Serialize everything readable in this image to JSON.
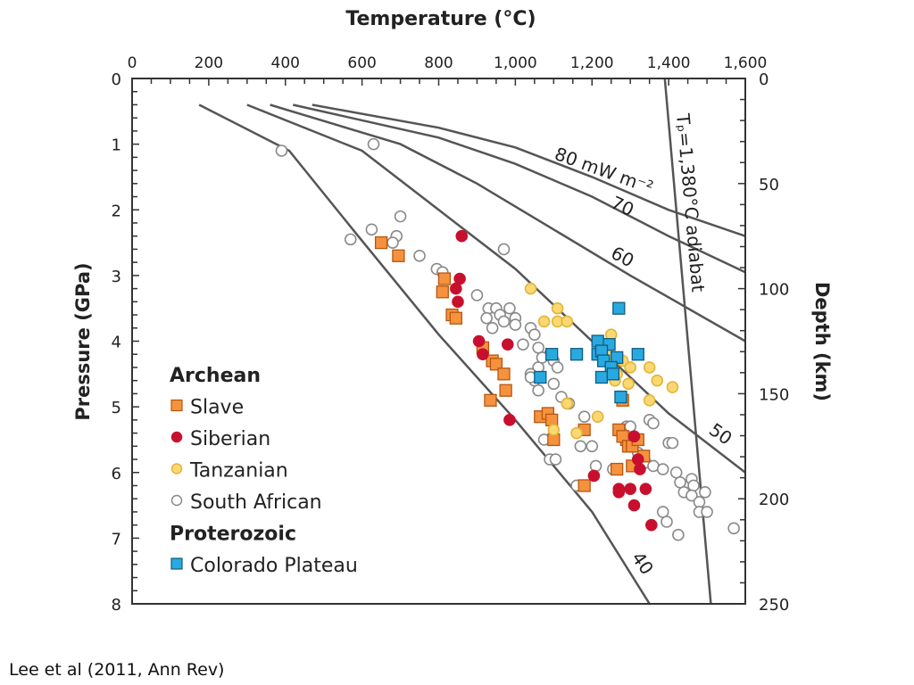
{
  "caption": "Lee et al (2011, Ann Rev)",
  "chart_data": {
    "type": "scatter",
    "title": "",
    "xlabel": "Temperature (°C)",
    "ylabel": "Pressure (GPa)",
    "y2label": "Depth (km)",
    "xlim": [
      0,
      1600
    ],
    "ylim": [
      0,
      8
    ],
    "y2lim": [
      0,
      250
    ],
    "x_ticks": [
      "0",
      "200",
      "400",
      "600",
      "800",
      "1,000",
      "1,200",
      "1,400",
      "1,600"
    ],
    "y_ticks": [
      "0",
      "1",
      "2",
      "3",
      "4",
      "5",
      "6",
      "7",
      "8"
    ],
    "y2_ticks": [
      "0",
      "50",
      "100",
      "150",
      "200",
      "250"
    ],
    "legend_position": "bottom-left",
    "legend": [
      {
        "type": "header",
        "label": "Archean"
      },
      {
        "type": "item",
        "label": "Slave",
        "series": "slave"
      },
      {
        "type": "item",
        "label": "Siberian",
        "series": "siberian"
      },
      {
        "type": "item",
        "label": "Tanzanian",
        "series": "tanzanian"
      },
      {
        "type": "item",
        "label": "South African",
        "series": "south_african"
      },
      {
        "type": "header",
        "label": "Proterozoic"
      },
      {
        "type": "item",
        "label": "Colorado Plateau",
        "series": "colorado"
      }
    ],
    "series_styles": {
      "slave": {
        "marker": "square",
        "fill": "#f5923e",
        "stroke": "#b8560f"
      },
      "siberian": {
        "marker": "circle",
        "fill": "#c8102e",
        "stroke": "#c8102e"
      },
      "tanzanian": {
        "marker": "circle",
        "fill": "#fbd872",
        "stroke": "#e2b53a"
      },
      "south_african": {
        "marker": "circle",
        "fill": "#ffffff",
        "stroke": "#8a8a8a"
      },
      "colorado": {
        "marker": "square",
        "fill": "#29a9e0",
        "stroke": "#0f5c80"
      }
    },
    "geotherms": [
      {
        "label": "40",
        "points": [
          [
            175,
            0.4
          ],
          [
            410,
            1.1
          ],
          [
            590,
            2.4
          ],
          [
            800,
            3.9
          ],
          [
            1000,
            5.2
          ],
          [
            1200,
            6.6
          ],
          [
            1350,
            8.0
          ]
        ]
      },
      {
        "label": "50",
        "points": [
          [
            300,
            0.4
          ],
          [
            600,
            1.1
          ],
          [
            800,
            2.0
          ],
          [
            1000,
            2.9
          ],
          [
            1200,
            4.0
          ],
          [
            1400,
            5.1
          ],
          [
            1600,
            6.0
          ]
        ]
      },
      {
        "label": "60",
        "points": [
          [
            360,
            0.4
          ],
          [
            700,
            1.0
          ],
          [
            900,
            1.6
          ],
          [
            1100,
            2.3
          ],
          [
            1300,
            3.0
          ],
          [
            1600,
            4.0
          ]
        ]
      },
      {
        "label": "70",
        "points": [
          [
            420,
            0.4
          ],
          [
            800,
            0.9
          ],
          [
            1000,
            1.3
          ],
          [
            1200,
            1.8
          ],
          [
            1400,
            2.4
          ],
          [
            1600,
            2.95
          ]
        ]
      },
      {
        "label": "80 mW m⁻²",
        "points": [
          [
            470,
            0.4
          ],
          [
            800,
            0.75
          ],
          [
            1000,
            1.05
          ],
          [
            1200,
            1.5
          ],
          [
            1400,
            2.0
          ],
          [
            1600,
            2.4
          ]
        ]
      }
    ],
    "adiabat": {
      "label": "Tₚ=1,380°C adiabat",
      "points": [
        [
          1390,
          0
        ],
        [
          1510,
          8
        ]
      ]
    },
    "series": [
      {
        "name": "Slave",
        "key": "slave",
        "points": [
          [
            650,
            2.5
          ],
          [
            695,
            2.7
          ],
          [
            815,
            3.05
          ],
          [
            810,
            3.25
          ],
          [
            835,
            3.6
          ],
          [
            845,
            3.65
          ],
          [
            915,
            4.1
          ],
          [
            940,
            4.3
          ],
          [
            950,
            4.35
          ],
          [
            970,
            4.5
          ],
          [
            975,
            4.75
          ],
          [
            935,
            4.9
          ],
          [
            1065,
            5.15
          ],
          [
            1085,
            5.1
          ],
          [
            1095,
            5.2
          ],
          [
            1100,
            5.5
          ],
          [
            1180,
            5.35
          ],
          [
            1270,
            5.35
          ],
          [
            1290,
            5.5
          ],
          [
            1280,
            5.45
          ],
          [
            1295,
            5.6
          ],
          [
            1305,
            5.6
          ],
          [
            1320,
            5.5
          ],
          [
            1335,
            5.75
          ],
          [
            1305,
            5.9
          ],
          [
            1265,
            5.95
          ],
          [
            1180,
            6.2
          ],
          [
            1280,
            4.9
          ]
        ]
      },
      {
        "name": "Siberian",
        "key": "siberian",
        "points": [
          [
            860,
            2.4
          ],
          [
            855,
            3.05
          ],
          [
            845,
            3.2
          ],
          [
            850,
            3.4
          ],
          [
            905,
            4.0
          ],
          [
            915,
            4.2
          ],
          [
            980,
            4.05
          ],
          [
            985,
            5.2
          ],
          [
            1205,
            6.05
          ],
          [
            1270,
            6.25
          ],
          [
            1300,
            6.25
          ],
          [
            1270,
            6.3
          ],
          [
            1340,
            6.25
          ],
          [
            1310,
            6.5
          ],
          [
            1355,
            6.8
          ],
          [
            1325,
            5.95
          ],
          [
            1320,
            5.8
          ],
          [
            1310,
            5.45
          ]
        ]
      },
      {
        "name": "Tanzanian",
        "key": "tanzanian",
        "points": [
          [
            1040,
            3.2
          ],
          [
            1110,
            3.5
          ],
          [
            1075,
            3.7
          ],
          [
            1110,
            3.7
          ],
          [
            1135,
            3.7
          ],
          [
            1250,
            3.9
          ],
          [
            1240,
            4.2
          ],
          [
            1280,
            4.3
          ],
          [
            1300,
            4.4
          ],
          [
            1350,
            4.4
          ],
          [
            1265,
            4.5
          ],
          [
            1295,
            4.65
          ],
          [
            1260,
            4.6
          ],
          [
            1370,
            4.6
          ],
          [
            1410,
            4.7
          ],
          [
            1350,
            4.9
          ],
          [
            1135,
            4.95
          ],
          [
            1215,
            5.15
          ],
          [
            1100,
            5.35
          ],
          [
            1160,
            5.4
          ]
        ]
      },
      {
        "name": "South African",
        "key": "south_african",
        "points": [
          [
            390,
            1.1
          ],
          [
            630,
            1.0
          ],
          [
            570,
            2.45
          ],
          [
            625,
            2.3
          ],
          [
            700,
            2.1
          ],
          [
            690,
            2.4
          ],
          [
            680,
            2.5
          ],
          [
            750,
            2.7
          ],
          [
            795,
            2.9
          ],
          [
            810,
            2.95
          ],
          [
            970,
            2.6
          ],
          [
            900,
            3.3
          ],
          [
            930,
            3.5
          ],
          [
            950,
            3.5
          ],
          [
            985,
            3.5
          ],
          [
            960,
            3.6
          ],
          [
            925,
            3.65
          ],
          [
            970,
            3.7
          ],
          [
            1000,
            3.65
          ],
          [
            1000,
            3.75
          ],
          [
            940,
            3.8
          ],
          [
            1040,
            3.8
          ],
          [
            1050,
            3.9
          ],
          [
            1020,
            4.05
          ],
          [
            1060,
            4.1
          ],
          [
            1090,
            4.2
          ],
          [
            1100,
            4.3
          ],
          [
            1060,
            4.4
          ],
          [
            1110,
            4.4
          ],
          [
            1040,
            4.5
          ],
          [
            1050,
            4.6
          ],
          [
            1100,
            4.65
          ],
          [
            1060,
            4.75
          ],
          [
            1120,
            4.85
          ],
          [
            1140,
            4.95
          ],
          [
            1040,
            4.55
          ],
          [
            1070,
            4.25
          ],
          [
            1180,
            5.15
          ],
          [
            1200,
            5.6
          ],
          [
            1170,
            5.6
          ],
          [
            1075,
            5.5
          ],
          [
            1090,
            5.8
          ],
          [
            1105,
            5.8
          ],
          [
            1160,
            6.2
          ],
          [
            1210,
            5.9
          ],
          [
            1255,
            5.95
          ],
          [
            1290,
            5.3
          ],
          [
            1300,
            5.3
          ],
          [
            1350,
            5.2
          ],
          [
            1360,
            5.25
          ],
          [
            1320,
            5.7
          ],
          [
            1340,
            5.85
          ],
          [
            1360,
            5.9
          ],
          [
            1385,
            5.95
          ],
          [
            1400,
            5.55
          ],
          [
            1420,
            6.0
          ],
          [
            1430,
            6.15
          ],
          [
            1440,
            6.3
          ],
          [
            1460,
            6.1
          ],
          [
            1465,
            6.2
          ],
          [
            1460,
            6.35
          ],
          [
            1480,
            6.45
          ],
          [
            1495,
            6.3
          ],
          [
            1480,
            6.6
          ],
          [
            1500,
            6.6
          ],
          [
            1385,
            6.6
          ],
          [
            1395,
            6.75
          ],
          [
            1425,
            6.95
          ],
          [
            1570,
            6.85
          ],
          [
            1410,
            5.55
          ]
        ]
      },
      {
        "name": "Colorado Plateau",
        "key": "colorado",
        "points": [
          [
            1270,
            3.5
          ],
          [
            1095,
            4.2
          ],
          [
            1160,
            4.2
          ],
          [
            1215,
            4.0
          ],
          [
            1245,
            4.05
          ],
          [
            1215,
            4.2
          ],
          [
            1225,
            4.15
          ],
          [
            1265,
            4.25
          ],
          [
            1320,
            4.2
          ],
          [
            1230,
            4.3
          ],
          [
            1250,
            4.4
          ],
          [
            1225,
            4.55
          ],
          [
            1255,
            4.5
          ],
          [
            1275,
            4.85
          ],
          [
            1065,
            4.55
          ]
        ]
      }
    ]
  }
}
